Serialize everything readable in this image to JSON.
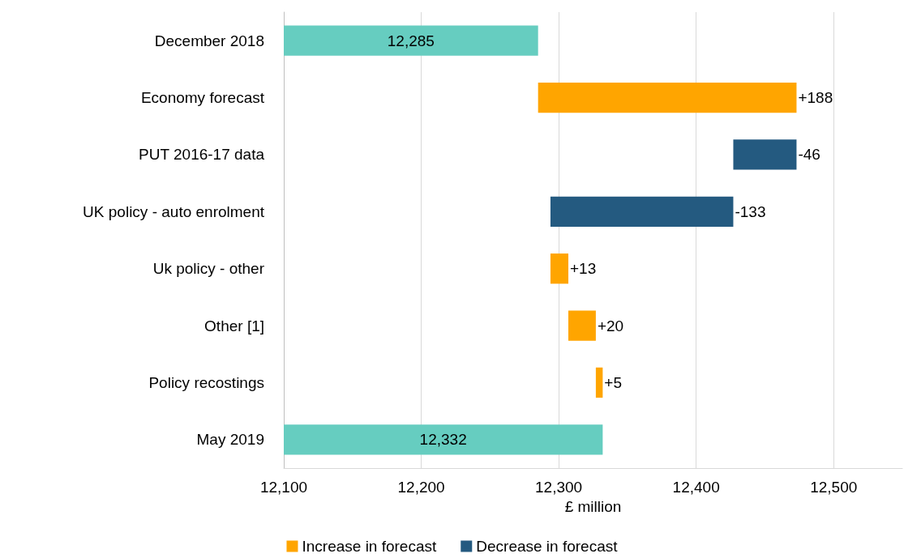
{
  "chart_data": {
    "type": "bar",
    "orientation": "horizontal",
    "xlabel": "£ million",
    "categories": [
      "December 2018",
      "Economy forecast",
      "PUT 2016-17 data",
      "UK policy - auto enrolment",
      "Uk policy - other",
      "Other [1]",
      "Policy recostings",
      "May 2019"
    ],
    "series": [
      {
        "name": "Increase in forecast",
        "color": "#ffa500",
        "values": [
          null,
          188,
          null,
          null,
          13,
          20,
          5,
          null
        ],
        "base": [
          null,
          12285,
          null,
          null,
          12294,
          12307,
          12327,
          null
        ]
      },
      {
        "name": "Decrease in forecast",
        "color": "#245a80",
        "values": [
          null,
          null,
          -46,
          -133,
          null,
          null,
          null,
          null
        ],
        "base": [
          null,
          null,
          12473,
          12427,
          null,
          null,
          null,
          null
        ]
      },
      {
        "color": "#66cdc0",
        "values": [
          12285,
          null,
          null,
          null,
          null,
          null,
          null,
          12332
        ]
      }
    ],
    "value_labels": [
      "12,285",
      "+188",
      "-46",
      "-133",
      "+13",
      "+20",
      "+5",
      "12,332"
    ],
    "xlim": [
      12100,
      12550
    ],
    "xticks": [
      {
        "value": 12100,
        "label": "12,100"
      },
      {
        "value": 12200,
        "label": "12,200"
      },
      {
        "value": 12300,
        "label": "12,300"
      },
      {
        "value": 12400,
        "label": "12,400"
      },
      {
        "value": 12500,
        "label": "12,500"
      }
    ],
    "grid": "x",
    "legend": "bottom"
  }
}
